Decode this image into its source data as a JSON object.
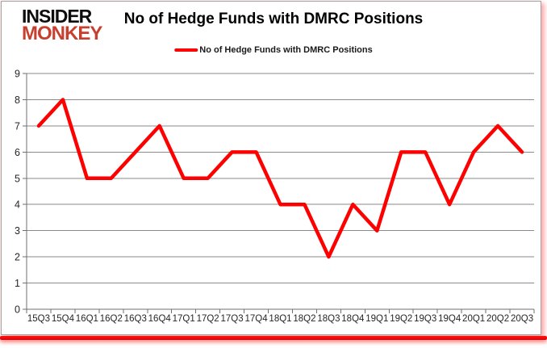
{
  "logo": {
    "line1": "INSIDER",
    "line2": "MONKEY"
  },
  "title": "No of Hedge Funds with DMRC Positions",
  "legend": {
    "label": "No of Hedge Funds with DMRC Positions"
  },
  "colors": {
    "line_red": "#FF0000",
    "logo_red": "#C7402F",
    "gridline_gray": "#8a8a8a",
    "axis_gray": "#6f6f6f",
    "bottom_bar_red": "#E00000",
    "tick_label": "#262626"
  },
  "chart_data": {
    "type": "line",
    "title": "No of Hedge Funds with DMRC Positions",
    "categories": [
      "15Q3",
      "15Q4",
      "16Q1",
      "16Q2",
      "16Q3",
      "16Q4",
      "17Q1",
      "17Q2",
      "17Q3",
      "17Q4",
      "18Q1",
      "18Q2",
      "18Q3",
      "18Q4",
      "19Q1",
      "19Q2",
      "19Q3",
      "19Q4",
      "20Q1",
      "20Q2",
      "20Q3"
    ],
    "series": [
      {
        "name": "No of Hedge Funds with DMRC Positions",
        "values": [
          7,
          8,
          5,
          5,
          6,
          7,
          5,
          5,
          6,
          6,
          4,
          4,
          2,
          4,
          3,
          6,
          6,
          4,
          6,
          7,
          6
        ]
      }
    ],
    "xlabel": "",
    "ylabel": "",
    "ylim": [
      0,
      9
    ],
    "ytick_step": 1,
    "yticks": [
      0,
      1,
      2,
      3,
      4,
      5,
      6,
      7,
      8,
      9
    ],
    "grid": true,
    "legend_position": "top",
    "line_color": "#FF0000"
  }
}
